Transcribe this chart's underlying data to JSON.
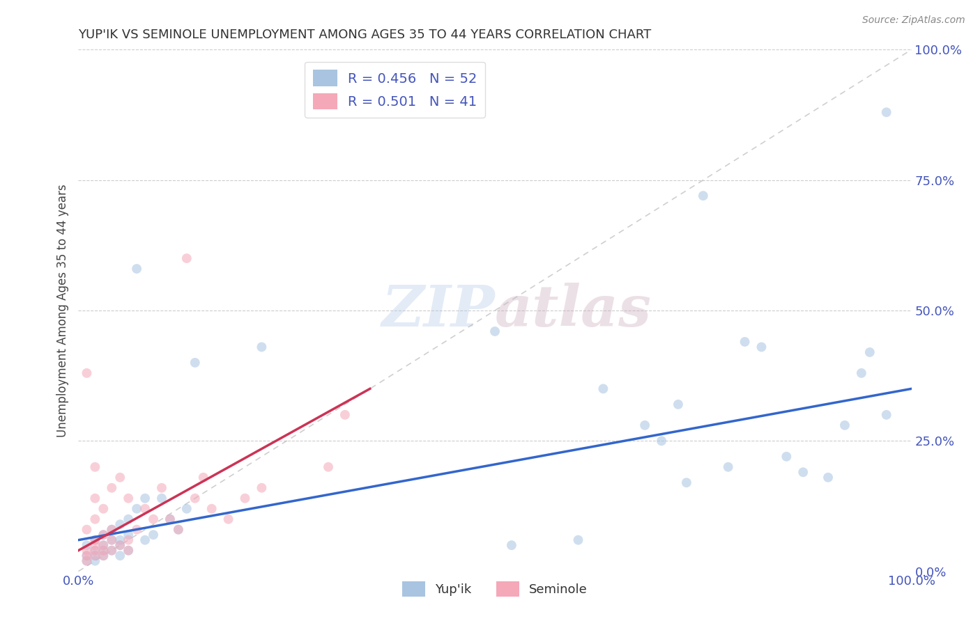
{
  "title": "YUP'IK VS SEMINOLE UNEMPLOYMENT AMONG AGES 35 TO 44 YEARS CORRELATION CHART",
  "source": "Source: ZipAtlas.com",
  "ylabel": "Unemployment Among Ages 35 to 44 years",
  "yupik_r": 0.456,
  "yupik_n": 52,
  "seminole_r": 0.501,
  "seminole_n": 41,
  "yupik_color": "#a8c4e0",
  "seminole_color": "#f4a8b8",
  "yupik_line_color": "#3366cc",
  "seminole_line_color": "#cc3355",
  "background_color": "#ffffff",
  "title_color": "#333333",
  "axis_label_color": "#4455bb",
  "watermark_color": "#ccd8ee",
  "yupik_x": [
    0.01,
    0.01,
    0.01,
    0.02,
    0.02,
    0.02,
    0.02,
    0.03,
    0.03,
    0.03,
    0.03,
    0.04,
    0.04,
    0.04,
    0.05,
    0.05,
    0.05,
    0.05,
    0.06,
    0.06,
    0.06,
    0.07,
    0.07,
    0.08,
    0.08,
    0.09,
    0.1,
    0.11,
    0.12,
    0.13,
    0.14,
    0.22,
    0.5,
    0.52,
    0.6,
    0.63,
    0.68,
    0.7,
    0.72,
    0.73,
    0.75,
    0.78,
    0.8,
    0.82,
    0.85,
    0.87,
    0.9,
    0.92,
    0.94,
    0.95,
    0.97,
    0.97
  ],
  "yupik_y": [
    0.05,
    0.03,
    0.02,
    0.06,
    0.04,
    0.03,
    0.02,
    0.07,
    0.05,
    0.04,
    0.03,
    0.08,
    0.06,
    0.04,
    0.09,
    0.06,
    0.05,
    0.03,
    0.1,
    0.07,
    0.04,
    0.58,
    0.12,
    0.14,
    0.06,
    0.07,
    0.14,
    0.1,
    0.08,
    0.12,
    0.4,
    0.43,
    0.46,
    0.05,
    0.06,
    0.35,
    0.28,
    0.25,
    0.32,
    0.17,
    0.72,
    0.2,
    0.44,
    0.43,
    0.22,
    0.19,
    0.18,
    0.28,
    0.38,
    0.42,
    0.3,
    0.88
  ],
  "seminole_x": [
    0.01,
    0.01,
    0.01,
    0.01,
    0.01,
    0.02,
    0.02,
    0.02,
    0.02,
    0.02,
    0.02,
    0.02,
    0.03,
    0.03,
    0.03,
    0.03,
    0.03,
    0.04,
    0.04,
    0.04,
    0.04,
    0.05,
    0.05,
    0.06,
    0.06,
    0.06,
    0.07,
    0.08,
    0.09,
    0.1,
    0.11,
    0.12,
    0.13,
    0.14,
    0.15,
    0.16,
    0.18,
    0.2,
    0.22,
    0.3,
    0.32
  ],
  "seminole_y": [
    0.02,
    0.03,
    0.04,
    0.08,
    0.38,
    0.03,
    0.04,
    0.05,
    0.06,
    0.1,
    0.14,
    0.2,
    0.03,
    0.04,
    0.05,
    0.07,
    0.12,
    0.04,
    0.06,
    0.08,
    0.16,
    0.05,
    0.18,
    0.04,
    0.06,
    0.14,
    0.08,
    0.12,
    0.1,
    0.16,
    0.1,
    0.08,
    0.6,
    0.14,
    0.18,
    0.12,
    0.1,
    0.14,
    0.16,
    0.2,
    0.3
  ],
  "xlim": [
    0.0,
    1.0
  ],
  "ylim": [
    0.0,
    1.0
  ],
  "xticks": [
    0.0,
    0.25,
    0.5,
    0.75,
    1.0
  ],
  "yticks": [
    0.25,
    0.5,
    0.75,
    1.0
  ],
  "xtick_labels_show": [
    "0.0%",
    "100.0%"
  ],
  "xtick_labels_pos": [
    0.0,
    1.0
  ],
  "ytick_labels": [
    "25.0%",
    "50.0%",
    "75.0%",
    "100.0%"
  ],
  "marker_size": 100,
  "marker_alpha": 0.55,
  "line_width": 2.5,
  "yupik_trend_x": [
    0.0,
    1.0
  ],
  "yupik_trend_y": [
    0.06,
    0.35
  ],
  "seminole_trend_x": [
    0.0,
    0.35
  ],
  "seminole_trend_y": [
    0.04,
    0.35
  ]
}
